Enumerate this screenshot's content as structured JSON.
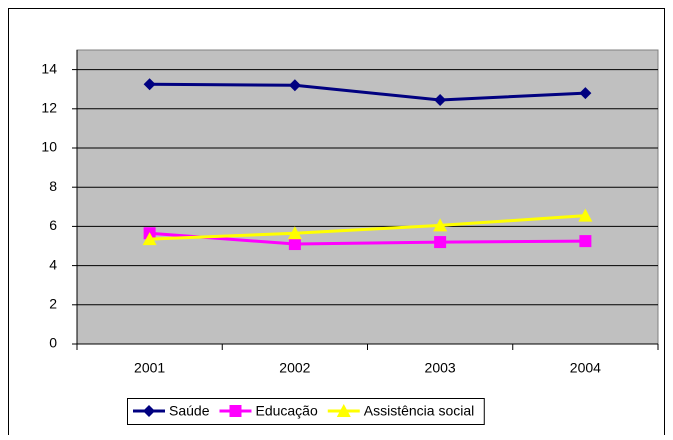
{
  "chart_data": {
    "type": "line",
    "categories": [
      "2001",
      "2002",
      "2003",
      "2004"
    ],
    "series": [
      {
        "name": "Saúde",
        "color": "#000080",
        "marker": "diamond",
        "values": [
          13.25,
          13.2,
          12.45,
          12.8
        ]
      },
      {
        "name": "Educação",
        "color": "#FF00FF",
        "marker": "square",
        "values": [
          5.65,
          5.1,
          5.2,
          5.25
        ]
      },
      {
        "name": "Assistência social",
        "color": "#FFFF00",
        "marker": "triangle",
        "values": [
          5.35,
          5.65,
          6.05,
          6.55
        ]
      }
    ],
    "ylim": [
      0,
      15
    ],
    "yticks": [
      0,
      2,
      4,
      6,
      8,
      10,
      12,
      14
    ],
    "grid": true,
    "plot_background": "#C0C0C0",
    "legend": "bottom"
  }
}
